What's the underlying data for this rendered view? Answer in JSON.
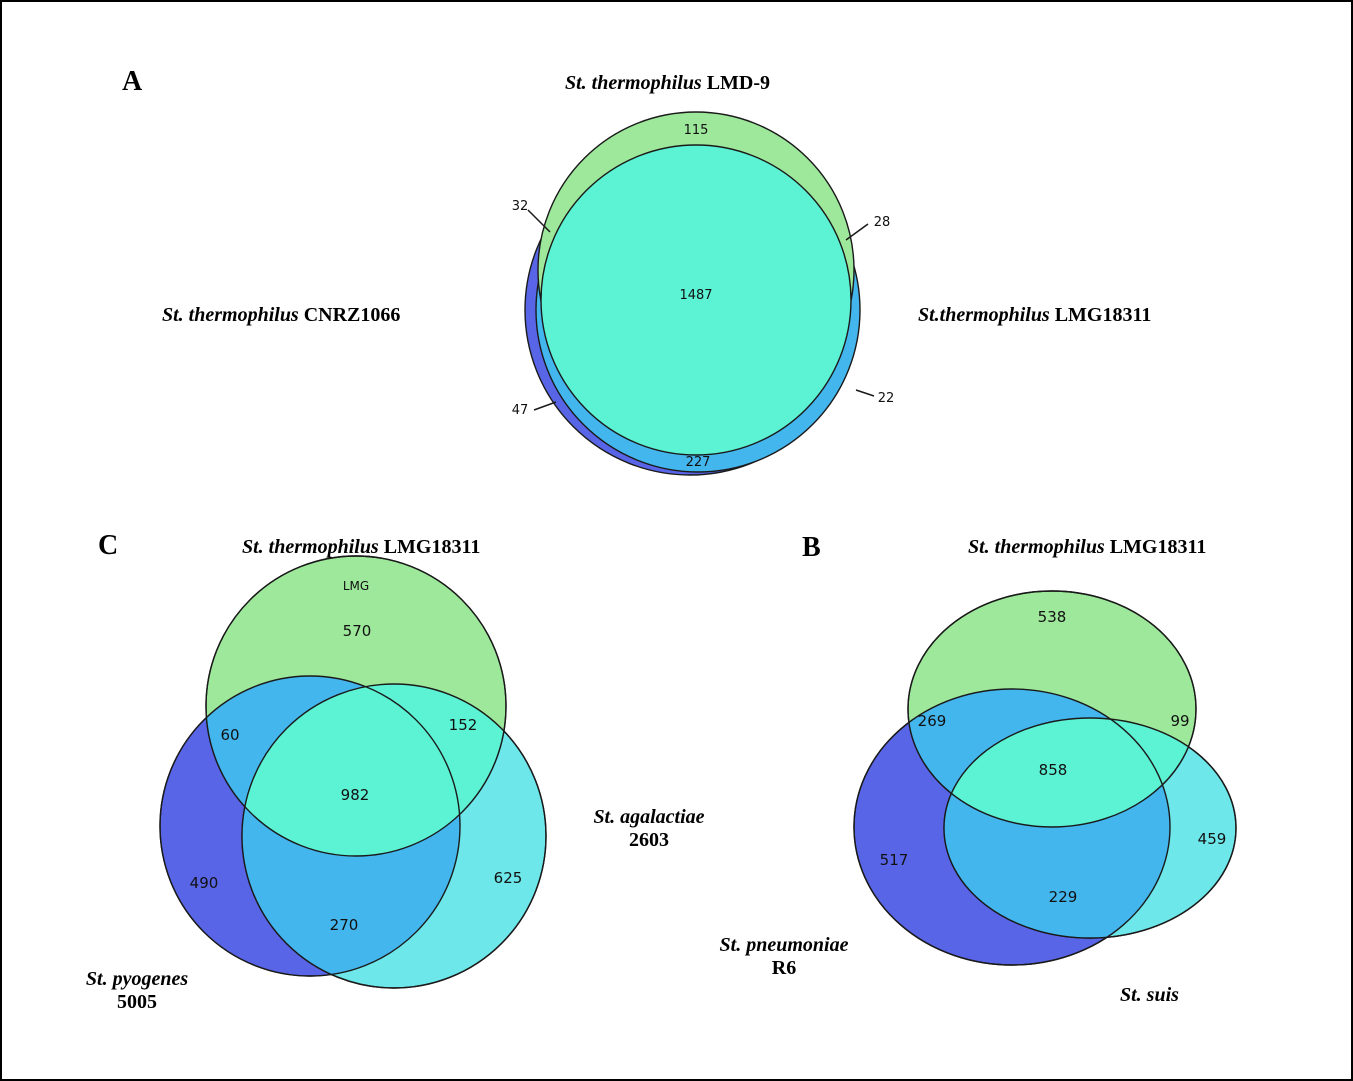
{
  "colors": {
    "green": "#9de89a",
    "teal": "#5cf2d4",
    "blue": "#44b6ee",
    "purple": "#5865e6",
    "cyan": "#6ee7ea",
    "stroke": "#1a1a1a"
  },
  "panels": {
    "A": {
      "letter": "A",
      "set_top": {
        "species": "St. thermophilus",
        "strain": "LMD-9"
      },
      "set_left": {
        "species": "St. thermophilus",
        "strain": "CNRZ1066"
      },
      "set_right": {
        "species": "St.thermophilus",
        "strain": "LMG18311"
      },
      "counts": {
        "top_only": "115",
        "core": "1487",
        "bottom": "227",
        "left_top": "32",
        "right_top": "28",
        "left_bottom": "47",
        "right_bottom": "22"
      }
    },
    "C": {
      "letter": "C",
      "set_top": {
        "species": "St. thermophilus",
        "strain": "LMG18311"
      },
      "set_top_inner": "LMG",
      "set_right": {
        "species": "St. agalactiae",
        "strain": "2603"
      },
      "set_left": {
        "species": "St. pyogenes",
        "strain": "5005"
      },
      "counts": {
        "top_only": "570",
        "top_left": "60",
        "top_right": "152",
        "core": "982",
        "left_only": "490",
        "left_right": "270",
        "right_only": "625"
      }
    },
    "B": {
      "letter": "B",
      "set_top": {
        "species": "St. thermophilus",
        "strain": "LMG18311"
      },
      "set_left": {
        "species": "St. pneumoniae",
        "strain": "R6"
      },
      "set_right": {
        "species": "St. suis",
        "strain": ""
      },
      "counts": {
        "top_only": "538",
        "top_left": "269",
        "top_right": "99",
        "core": "858",
        "left_only": "517",
        "left_right": "229",
        "right_only": "459"
      }
    }
  }
}
